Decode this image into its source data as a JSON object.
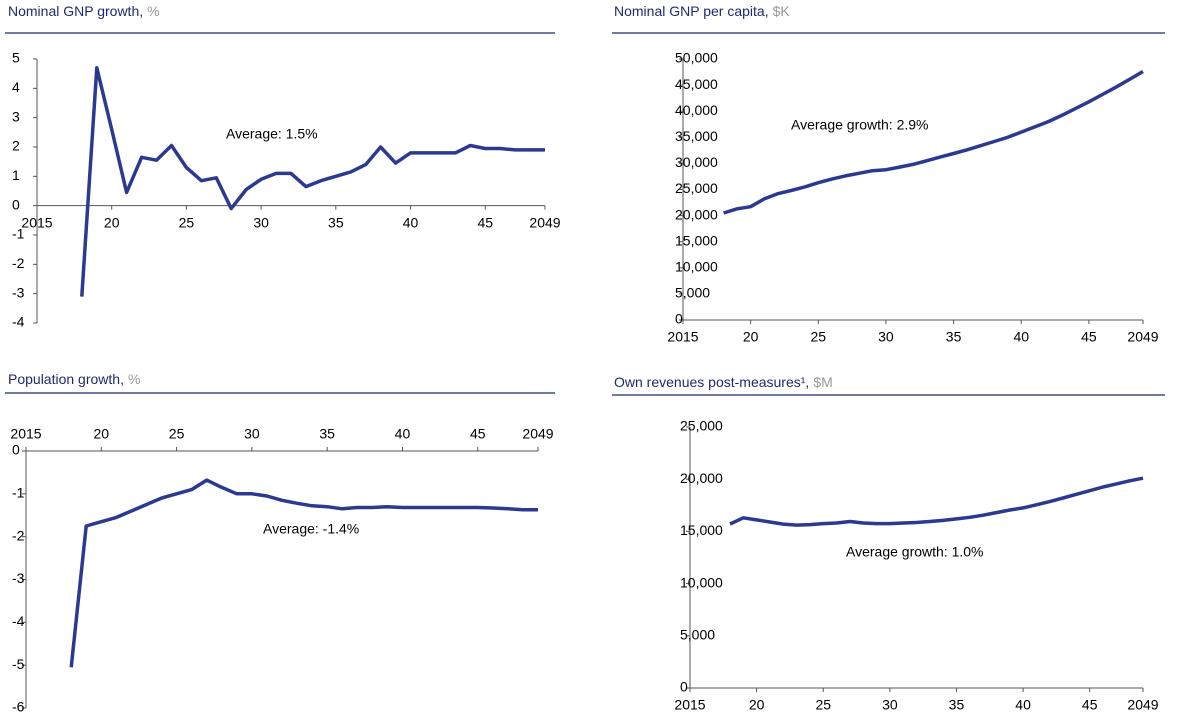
{
  "chart_data": [
    {
      "type": "line",
      "title": "Nominal  GNP growth,",
      "subtitle": "%",
      "annotation": "Average: 1.5%",
      "color": "#2b3990",
      "x": [
        2018,
        2019,
        2020,
        2021,
        2022,
        2023,
        2024,
        2025,
        2026,
        2027,
        2028,
        2029,
        2030,
        2031,
        2032,
        2033,
        2034,
        2035,
        2036,
        2037,
        2038,
        2039,
        2040,
        2041,
        2042,
        2043,
        2044,
        2045,
        2046,
        2047,
        2048,
        2049
      ],
      "values": [
        -3.1,
        4.7,
        2.6,
        0.45,
        1.65,
        1.55,
        2.05,
        1.3,
        0.85,
        0.95,
        -0.1,
        0.55,
        0.9,
        1.1,
        1.1,
        0.65,
        0.85,
        1.0,
        1.15,
        1.4,
        2.0,
        1.45,
        1.8,
        1.8,
        1.8,
        1.8,
        2.05,
        1.95,
        1.95,
        1.9,
        1.9,
        1.9
      ],
      "xlim": [
        2015,
        2049
      ],
      "xticks": [
        2015,
        {
          "value": 2020,
          "label": "20"
        },
        {
          "value": 2025,
          "label": "25"
        },
        {
          "value": 2030,
          "label": "30"
        },
        {
          "value": 2035,
          "label": "35"
        },
        {
          "value": 2040,
          "label": "40"
        },
        {
          "value": 2045,
          "label": "45"
        },
        2049
      ],
      "ylim": [
        -4,
        5
      ],
      "yticks": [
        -4,
        -3,
        -2,
        -1,
        0,
        1,
        2,
        3,
        4,
        5
      ]
    },
    {
      "type": "line",
      "title": "Nominal  GNP per capita,",
      "subtitle": "$K",
      "annotation": "Average growth: 2.9%",
      "color": "#2b3990",
      "x": [
        2018,
        2019,
        2020,
        2021,
        2022,
        2023,
        2024,
        2025,
        2026,
        2027,
        2028,
        2029,
        2030,
        2031,
        2032,
        2033,
        2034,
        2035,
        2036,
        2037,
        2038,
        2039,
        2040,
        2041,
        2042,
        2043,
        2044,
        2045,
        2046,
        2047,
        2048,
        2049
      ],
      "values": [
        20500,
        21300,
        21700,
        23200,
        24200,
        24800,
        25500,
        26300,
        27000,
        27600,
        28100,
        28600,
        28800,
        29300,
        29800,
        30500,
        31200,
        31900,
        32600,
        33400,
        34200,
        35000,
        36000,
        37000,
        38000,
        39200,
        40500,
        41800,
        43200,
        44600,
        46100,
        47600
      ],
      "xlim": [
        2015,
        2049
      ],
      "xticks": [
        2015,
        {
          "value": 2020,
          "label": "20"
        },
        {
          "value": 2025,
          "label": "25"
        },
        {
          "value": 2030,
          "label": "30"
        },
        {
          "value": 2035,
          "label": "35"
        },
        {
          "value": 2040,
          "label": "40"
        },
        {
          "value": 2045,
          "label": "45"
        },
        2049
      ],
      "ylim": [
        0,
        50000
      ],
      "yticks": [
        0,
        {
          "value": 5000,
          "label": "5,000"
        },
        {
          "value": 10000,
          "label": "10,000"
        },
        {
          "value": 15000,
          "label": "15,000"
        },
        {
          "value": 20000,
          "label": "20,000"
        },
        {
          "value": 25000,
          "label": "25,000"
        },
        {
          "value": 30000,
          "label": "30,000"
        },
        {
          "value": 35000,
          "label": "35,000"
        },
        {
          "value": 40000,
          "label": "40,000"
        },
        {
          "value": 45000,
          "label": "45,000"
        },
        {
          "value": 50000,
          "label": "50,000"
        }
      ]
    },
    {
      "type": "line",
      "title": "Population growth,",
      "subtitle": "%",
      "annotation": "Average: -1.4%",
      "color": "#2b3990",
      "x": [
        2018,
        2019,
        2020,
        2021,
        2022,
        2023,
        2024,
        2025,
        2026,
        2027,
        2028,
        2029,
        2030,
        2031,
        2032,
        2033,
        2034,
        2035,
        2036,
        2037,
        2038,
        2039,
        2040,
        2041,
        2042,
        2043,
        2044,
        2045,
        2046,
        2047,
        2048,
        2049
      ],
      "values": [
        -5.05,
        -1.75,
        -1.65,
        -1.55,
        -1.4,
        -1.25,
        -1.1,
        -1.0,
        -0.9,
        -0.68,
        -0.85,
        -1.0,
        -1.0,
        -1.05,
        -1.15,
        -1.22,
        -1.28,
        -1.3,
        -1.35,
        -1.32,
        -1.32,
        -1.3,
        -1.32,
        -1.32,
        -1.32,
        -1.32,
        -1.32,
        -1.32,
        -1.33,
        -1.35,
        -1.37,
        -1.37
      ],
      "xlim": [
        2015,
        2049
      ],
      "xticks": [
        2015,
        {
          "value": 2020,
          "label": "20"
        },
        {
          "value": 2025,
          "label": "25"
        },
        {
          "value": 2030,
          "label": "30"
        },
        {
          "value": 2035,
          "label": "35"
        },
        {
          "value": 2040,
          "label": "40"
        },
        {
          "value": 2045,
          "label": "45"
        },
        2049
      ],
      "ylim": [
        -6,
        0
      ],
      "yticks": [
        -6,
        -5,
        -4,
        -3,
        -2,
        -1,
        0
      ]
    },
    {
      "type": "line",
      "title": "Own revenues post-measures¹,",
      "subtitle": "$M",
      "annotation": "Average growth: 1.0%",
      "color": "#2b3990",
      "x": [
        2018,
        2019,
        2020,
        2021,
        2022,
        2023,
        2024,
        2025,
        2026,
        2027,
        2028,
        2029,
        2030,
        2031,
        2032,
        2033,
        2034,
        2035,
        2036,
        2037,
        2038,
        2039,
        2040,
        2041,
        2042,
        2043,
        2044,
        2045,
        2046,
        2047,
        2048,
        2049
      ],
      "values": [
        15700,
        16300,
        16100,
        15900,
        15700,
        15600,
        15650,
        15750,
        15800,
        15950,
        15800,
        15750,
        15750,
        15800,
        15850,
        15950,
        16050,
        16200,
        16350,
        16550,
        16800,
        17050,
        17250,
        17550,
        17850,
        18200,
        18550,
        18900,
        19250,
        19550,
        19850,
        20100
      ],
      "xlim": [
        2015,
        2049
      ],
      "xticks": [
        2015,
        {
          "value": 2020,
          "label": "20"
        },
        {
          "value": 2025,
          "label": "25"
        },
        {
          "value": 2030,
          "label": "30"
        },
        {
          "value": 2035,
          "label": "35"
        },
        {
          "value": 2040,
          "label": "40"
        },
        {
          "value": 2045,
          "label": "45"
        },
        2049
      ],
      "ylim": [
        0,
        25000
      ],
      "yticks": [
        0,
        {
          "value": 5000,
          "label": "5,000"
        },
        {
          "value": 10000,
          "label": "10,000"
        },
        {
          "value": 15000,
          "label": "15,000"
        },
        {
          "value": 20000,
          "label": "20,000"
        },
        {
          "value": 25000,
          "label": "25,000"
        }
      ]
    }
  ]
}
